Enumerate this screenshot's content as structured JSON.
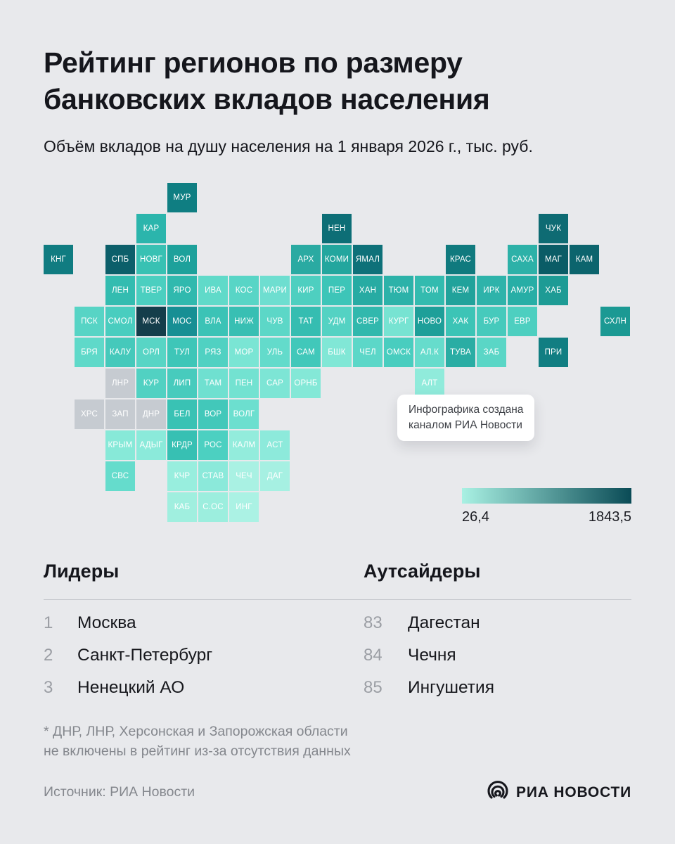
{
  "header": {
    "title_line1": "Рейтинг регионов по размеру",
    "title_line2": "банковских вкладов населения",
    "subtitle": "Объём вкладов на душу населения на 1 января 2026 г., тыс. руб."
  },
  "chart_data": {
    "type": "heatmap",
    "title": "Рейтинг регионов по размеру банковских вкладов населения",
    "subtitle": "Объём вкладов на душу населения на 1 января 2026 г., тыс. руб.",
    "scale": {
      "min": 26.4,
      "max": 1843.5,
      "units": "тыс. руб."
    },
    "legend_position": "bottom-right",
    "leaders": [
      {
        "rank": 1,
        "region": "Москва"
      },
      {
        "rank": 2,
        "region": "Санкт-Петербург"
      },
      {
        "rank": 3,
        "region": "Ненецкий АО"
      }
    ],
    "outsiders": [
      {
        "rank": 83,
        "region": "Дагестан"
      },
      {
        "rank": 84,
        "region": "Чечня"
      },
      {
        "rank": 85,
        "region": "Ингушетия"
      }
    ],
    "excluded_regions": [
      "ДНР",
      "ЛНР",
      "Херсонская область",
      "Запорожская область"
    ]
  },
  "map": {
    "callout": {
      "line1": "Инфографика создана",
      "line2": "каналом РИА Новости"
    },
    "no_data_color": "#c6cbd1",
    "tiles": [
      {
        "label": "МУР",
        "col": 5,
        "row": 1,
        "color": "#0f7e82"
      },
      {
        "label": "КАР",
        "col": 4,
        "row": 2,
        "color": "#2bb5ac"
      },
      {
        "label": "НЕН",
        "col": 10,
        "row": 2,
        "color": "#0d6e76"
      },
      {
        "label": "ЧУК",
        "col": 17,
        "row": 2,
        "color": "#0e6b73"
      },
      {
        "label": "КНГ",
        "col": 1,
        "row": 3,
        "color": "#107c81"
      },
      {
        "label": "СПБ",
        "col": 3,
        "row": 3,
        "color": "#0c5f6a"
      },
      {
        "label": "НОВГ",
        "col": 4,
        "row": 3,
        "color": "#38c1b3"
      },
      {
        "label": "ВОЛ",
        "col": 5,
        "row": 3,
        "color": "#1da19b"
      },
      {
        "label": "АРХ",
        "col": 9,
        "row": 3,
        "color": "#2aaaa2"
      },
      {
        "label": "КОМИ",
        "col": 10,
        "row": 3,
        "color": "#23a69e"
      },
      {
        "label": "ЯМАЛ",
        "col": 11,
        "row": 3,
        "color": "#0e7179"
      },
      {
        "label": "КРАС",
        "col": 14,
        "row": 3,
        "color": "#107a7e"
      },
      {
        "label": "САХА",
        "col": 16,
        "row": 3,
        "color": "#2db1a8"
      },
      {
        "label": "МАГ",
        "col": 17,
        "row": 3,
        "color": "#0a5c66"
      },
      {
        "label": "КАМ",
        "col": 18,
        "row": 3,
        "color": "#0c646d"
      },
      {
        "label": "ЛЕН",
        "col": 3,
        "row": 4,
        "color": "#33bcb0"
      },
      {
        "label": "ТВЕР",
        "col": 4,
        "row": 4,
        "color": "#4bcfc0"
      },
      {
        "label": "ЯРО",
        "col": 5,
        "row": 4,
        "color": "#30b9ae"
      },
      {
        "label": "ИВА",
        "col": 6,
        "row": 4,
        "color": "#60dac9"
      },
      {
        "label": "КОС",
        "col": 7,
        "row": 4,
        "color": "#58d5c6"
      },
      {
        "label": "МАРИ",
        "col": 8,
        "row": 4,
        "color": "#6eded0"
      },
      {
        "label": "КИР",
        "col": 9,
        "row": 4,
        "color": "#4ecfc0"
      },
      {
        "label": "ПЕР",
        "col": 10,
        "row": 4,
        "color": "#3dc5b8"
      },
      {
        "label": "ХАН",
        "col": 11,
        "row": 4,
        "color": "#27aba3"
      },
      {
        "label": "ТЮМ",
        "col": 12,
        "row": 4,
        "color": "#2cb2a9"
      },
      {
        "label": "ТОМ",
        "col": 13,
        "row": 4,
        "color": "#33bbaf"
      },
      {
        "label": "КЕМ",
        "col": 14,
        "row": 4,
        "color": "#21a29b"
      },
      {
        "label": "ИРК",
        "col": 15,
        "row": 4,
        "color": "#2eb3aa"
      },
      {
        "label": "АМУР",
        "col": 16,
        "row": 4,
        "color": "#27aea6"
      },
      {
        "label": "ХАБ",
        "col": 17,
        "row": 4,
        "color": "#1d9b95"
      },
      {
        "label": "ПСК",
        "col": 2,
        "row": 5,
        "color": "#57d4c5"
      },
      {
        "label": "СМОЛ",
        "col": 3,
        "row": 5,
        "color": "#49cdbf"
      },
      {
        "label": "МСК",
        "col": 4,
        "row": 5,
        "color": "#143e4b"
      },
      {
        "label": "МОС",
        "col": 5,
        "row": 5,
        "color": "#178f94"
      },
      {
        "label": "ВЛА",
        "col": 6,
        "row": 5,
        "color": "#3bc3b6"
      },
      {
        "label": "НИЖ",
        "col": 7,
        "row": 5,
        "color": "#38bfb3"
      },
      {
        "label": "ЧУВ",
        "col": 8,
        "row": 5,
        "color": "#5cd7c7"
      },
      {
        "label": "ТАТ",
        "col": 9,
        "row": 5,
        "color": "#35bdb1"
      },
      {
        "label": "УДМ",
        "col": 10,
        "row": 5,
        "color": "#54d2c3"
      },
      {
        "label": "СВЕР",
        "col": 11,
        "row": 5,
        "color": "#31b8ad"
      },
      {
        "label": "КУРГ",
        "col": 12,
        "row": 5,
        "color": "#77e3d2"
      },
      {
        "label": "НОВО",
        "col": 13,
        "row": 5,
        "color": "#1e9f99"
      },
      {
        "label": "ХАК",
        "col": 14,
        "row": 5,
        "color": "#3cc4b6"
      },
      {
        "label": "БУР",
        "col": 15,
        "row": 5,
        "color": "#46cabc"
      },
      {
        "label": "ЕВР",
        "col": 16,
        "row": 5,
        "color": "#4dcfc0"
      },
      {
        "label": "СХЛН",
        "col": 19,
        "row": 5,
        "color": "#1b9993"
      },
      {
        "label": "БРЯ",
        "col": 2,
        "row": 6,
        "color": "#5fd9c9"
      },
      {
        "label": "КАЛУ",
        "col": 3,
        "row": 6,
        "color": "#45c9bb"
      },
      {
        "label": "ОРЛ",
        "col": 4,
        "row": 6,
        "color": "#58d5c5"
      },
      {
        "label": "ТУЛ",
        "col": 5,
        "row": 6,
        "color": "#3ec6b8"
      },
      {
        "label": "РЯЗ",
        "col": 6,
        "row": 6,
        "color": "#50d1c2"
      },
      {
        "label": "МОР",
        "col": 7,
        "row": 6,
        "color": "#7ae5d4"
      },
      {
        "label": "УЛЬ",
        "col": 8,
        "row": 6,
        "color": "#63dbcb"
      },
      {
        "label": "САМ",
        "col": 9,
        "row": 6,
        "color": "#41c8ba"
      },
      {
        "label": "БШК",
        "col": 10,
        "row": 6,
        "color": "#81e7d6"
      },
      {
        "label": "ЧЕЛ",
        "col": 11,
        "row": 6,
        "color": "#5cd7c8"
      },
      {
        "label": "ОМСК",
        "col": 12,
        "row": 6,
        "color": "#49cdbf"
      },
      {
        "label": "АЛ.К",
        "col": 13,
        "row": 6,
        "color": "#66dccc"
      },
      {
        "label": "ТУВА",
        "col": 14,
        "row": 6,
        "color": "#2aada4"
      },
      {
        "label": "ЗАБ",
        "col": 15,
        "row": 6,
        "color": "#5ad6c6"
      },
      {
        "label": "ПРИ",
        "col": 17,
        "row": 6,
        "color": "#117e82"
      },
      {
        "label": "ЛНР",
        "col": 3,
        "row": 7,
        "color": "#c6cbd1"
      },
      {
        "label": "КУР",
        "col": 4,
        "row": 7,
        "color": "#51d1c2"
      },
      {
        "label": "ЛИП",
        "col": 5,
        "row": 7,
        "color": "#47cbbd"
      },
      {
        "label": "ТАМ",
        "col": 6,
        "row": 7,
        "color": "#6fe0d0"
      },
      {
        "label": "ПЕН",
        "col": 7,
        "row": 7,
        "color": "#73e2d1"
      },
      {
        "label": "САР",
        "col": 8,
        "row": 7,
        "color": "#7de5d5"
      },
      {
        "label": "ОРНБ",
        "col": 9,
        "row": 7,
        "color": "#84e8d7"
      },
      {
        "label": "АЛТ",
        "col": 13,
        "row": 7,
        "color": "#90ebdb"
      },
      {
        "label": "ХРС",
        "col": 2,
        "row": 8,
        "color": "#c6cbd1"
      },
      {
        "label": "ЗАП",
        "col": 3,
        "row": 8,
        "color": "#c6cbd1"
      },
      {
        "label": "ДНР",
        "col": 4,
        "row": 8,
        "color": "#c6cbd1"
      },
      {
        "label": "БЕЛ",
        "col": 5,
        "row": 8,
        "color": "#39c2b4"
      },
      {
        "label": "ВОР",
        "col": 6,
        "row": 8,
        "color": "#42c8ba"
      },
      {
        "label": "ВОЛГ",
        "col": 7,
        "row": 8,
        "color": "#6cdfcf"
      },
      {
        "label": "КРЫМ",
        "col": 3,
        "row": 9,
        "color": "#87e9d8"
      },
      {
        "label": "АДЫГ",
        "col": 4,
        "row": 9,
        "color": "#8beada"
      },
      {
        "label": "КРДР",
        "col": 5,
        "row": 9,
        "color": "#37c0b3"
      },
      {
        "label": "РОС",
        "col": 6,
        "row": 9,
        "color": "#4cd0c1"
      },
      {
        "label": "КАЛМ",
        "col": 7,
        "row": 9,
        "color": "#93ecdc"
      },
      {
        "label": "АСТ",
        "col": 8,
        "row": 9,
        "color": "#8deadb"
      },
      {
        "label": "СВС",
        "col": 3,
        "row": 10,
        "color": "#65dccc"
      },
      {
        "label": "КЧР",
        "col": 5,
        "row": 10,
        "color": "#98eede"
      },
      {
        "label": "СТАВ",
        "col": 6,
        "row": 10,
        "color": "#8be9da"
      },
      {
        "label": "ЧЕЧ",
        "col": 7,
        "row": 10,
        "color": "#a9f1e3"
      },
      {
        "label": "ДАГ",
        "col": 8,
        "row": 10,
        "color": "#a6f0e2"
      },
      {
        "label": "КАБ",
        "col": 5,
        "row": 11,
        "color": "#a0efdf"
      },
      {
        "label": "С.ОС",
        "col": 6,
        "row": 11,
        "color": "#9ceede"
      },
      {
        "label": "ИНГ",
        "col": 7,
        "row": 11,
        "color": "#abf2e4"
      }
    ]
  },
  "legend": {
    "min": "26,4",
    "max": "1843,5",
    "gradient_from": "#a9f1e3",
    "gradient_to": "#0a4b56"
  },
  "lists": {
    "leaders": {
      "heading": "Лидеры",
      "items": [
        {
          "rank": "1",
          "name": "Москва"
        },
        {
          "rank": "2",
          "name": "Санкт-Петербург"
        },
        {
          "rank": "3",
          "name": "Ненецкий АО"
        }
      ]
    },
    "outsiders": {
      "heading": "Аутсайдеры",
      "items": [
        {
          "rank": "83",
          "name": "Дагестан"
        },
        {
          "rank": "84",
          "name": "Чечня"
        },
        {
          "rank": "85",
          "name": "Ингушетия"
        }
      ]
    }
  },
  "footnote": {
    "line1": "* ДНР, ЛНР, Херсонская и Запорожская области",
    "line2": "не включены в рейтинг из-за отсутствия данных"
  },
  "footer": {
    "source": "Источник: РИА Новости",
    "logo_text": "РИА НОВОСТИ"
  }
}
